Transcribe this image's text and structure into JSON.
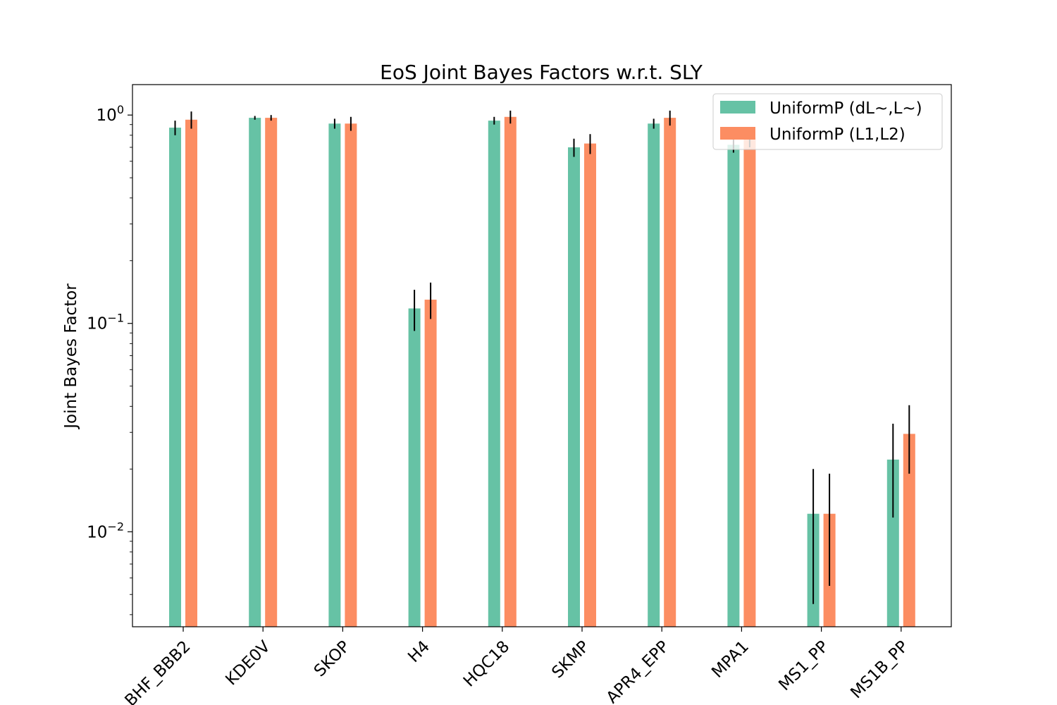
{
  "chart_data": {
    "type": "bar",
    "title": "EoS Joint Bayes Factors w.r.t. SLY",
    "xlabel": "",
    "ylabel": "Joint Bayes Factor",
    "yscale": "log",
    "ylim": [
      0.0035,
      1.4
    ],
    "yticks": [
      {
        "value": 1,
        "base": "10",
        "exp": "0"
      },
      {
        "value": 0.1,
        "base": "10",
        "exp": "−1"
      },
      {
        "value": 0.01,
        "base": "10",
        "exp": "−2"
      }
    ],
    "categories": [
      "BHF_BBB2",
      "KDE0V",
      "SKOP",
      "H4",
      "HQC18",
      "SKMP",
      "APR4_EPP",
      "MPA1",
      "MS1_PP",
      "MS1B_PP"
    ],
    "series": [
      {
        "name": "UniformP (dL~,L~)",
        "color": "#66c2a5",
        "values": [
          0.87,
          0.97,
          0.91,
          0.118,
          0.94,
          0.7,
          0.91,
          0.72,
          0.0122,
          0.0222
        ],
        "err_low": [
          0.8,
          0.95,
          0.86,
          0.092,
          0.9,
          0.63,
          0.86,
          0.66,
          0.0045,
          0.0117
        ],
        "err_high": [
          0.94,
          0.99,
          0.96,
          0.145,
          0.98,
          0.77,
          0.96,
          0.78,
          0.02,
          0.033
        ]
      },
      {
        "name": "UniformP (L1,L2)",
        "color": "#fc8d62",
        "values": [
          0.95,
          0.97,
          0.91,
          0.13,
          0.98,
          0.73,
          0.97,
          0.78,
          0.0122,
          0.0295
        ],
        "err_low": [
          0.86,
          0.94,
          0.84,
          0.105,
          0.91,
          0.65,
          0.89,
          0.7,
          0.0055,
          0.019
        ],
        "err_high": [
          1.04,
          1.0,
          0.98,
          0.157,
          1.05,
          0.81,
          1.05,
          0.86,
          0.019,
          0.0405
        ]
      }
    ],
    "legend": "top-right",
    "grid": false
  }
}
